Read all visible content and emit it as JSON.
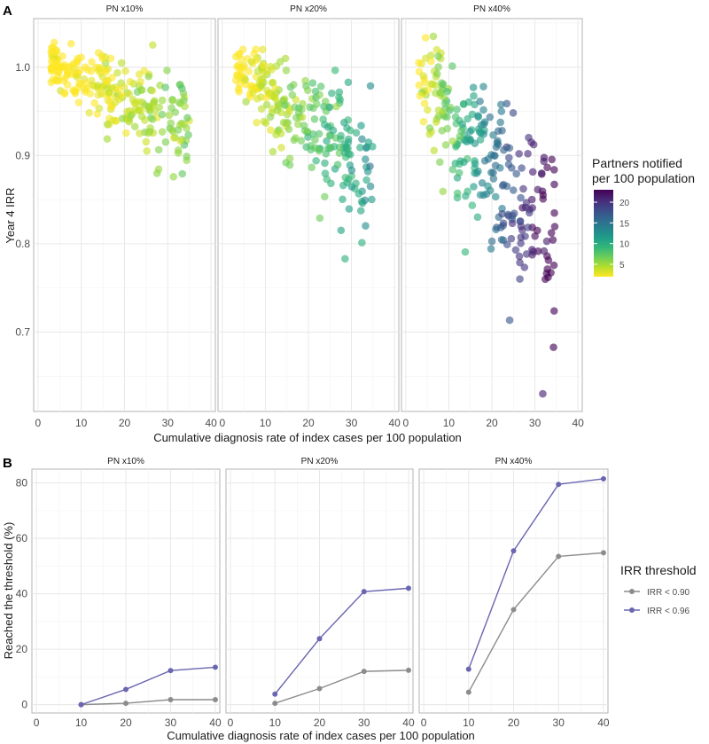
{
  "figure": {
    "panel_a_tag": "A",
    "panel_b_tag": "B"
  },
  "chart_data": [
    {
      "type": "scatter",
      "panel": "A",
      "facets": [
        "PN x10%",
        "PN x20%",
        "PN x40%"
      ],
      "xlabel": "Cumulative diagnosis rate of index cases per 100 population",
      "ylabel": "Year  4 IRR",
      "xlim": [
        -1,
        41
      ],
      "ylim": [
        0.61,
        1.055
      ],
      "xticks": [
        0,
        10,
        20,
        30,
        40
      ],
      "yticks": [
        0.7,
        0.8,
        0.9,
        1.0
      ],
      "ytick_labels": [
        "0.7",
        "0.8",
        "0.9",
        "1.0"
      ],
      "color_legend": {
        "title_line1": "Partners notified",
        "title_line2": "per 100 population",
        "range": [
          2,
          23
        ],
        "ticks": [
          5,
          10,
          15,
          20
        ],
        "tick_labels": [
          "5",
          "10",
          "15",
          "20"
        ],
        "colormap": [
          "#fde725",
          "#b5de2b",
          "#6ece58",
          "#35b779",
          "#1f9e89",
          "#26828e",
          "#31688e",
          "#3e4989",
          "#482878",
          "#440154"
        ]
      },
      "points_per_facet": 260,
      "point_generation_note": "illustrative scatter following each facet's visible trend: x from 3 to 35, IRR decreasing with x; color = partners notified (about x * 0.18 / 0.35 / 0.7 for x10%, x20%, x40%)"
    },
    {
      "type": "line",
      "panel": "B",
      "facets": [
        "PN x10%",
        "PN x20%",
        "PN x40%"
      ],
      "x": [
        10,
        20,
        30,
        40
      ],
      "series": [
        {
          "name": "IRR < 0.90",
          "color": "#8c8c8c",
          "values": [
            [
              0,
              0.5,
              1.8,
              1.8
            ],
            [
              0.5,
              5.8,
              12.0,
              12.4
            ],
            [
              4.5,
              34.3,
              53.5,
              54.8
            ]
          ]
        },
        {
          "name": "IRR < 0.96",
          "color": "#6a66b0",
          "values": [
            [
              0,
              5.5,
              12.3,
              13.5
            ],
            [
              3.8,
              23.8,
              40.8,
              42.0
            ],
            [
              12.8,
              55.5,
              79.5,
              81.5
            ]
          ]
        }
      ],
      "xlabel": "Cumulative diagnosis rate of index cases per 100 population",
      "ylabel": "Reached the threshold (%)",
      "xlim": [
        -1,
        41
      ],
      "ylim": [
        -3,
        85
      ],
      "xticks": [
        0,
        10,
        20,
        30,
        40
      ],
      "yticks": [
        0,
        20,
        40,
        60,
        80
      ],
      "legend_title": "IRR threshold",
      "legend_position": "right"
    }
  ]
}
